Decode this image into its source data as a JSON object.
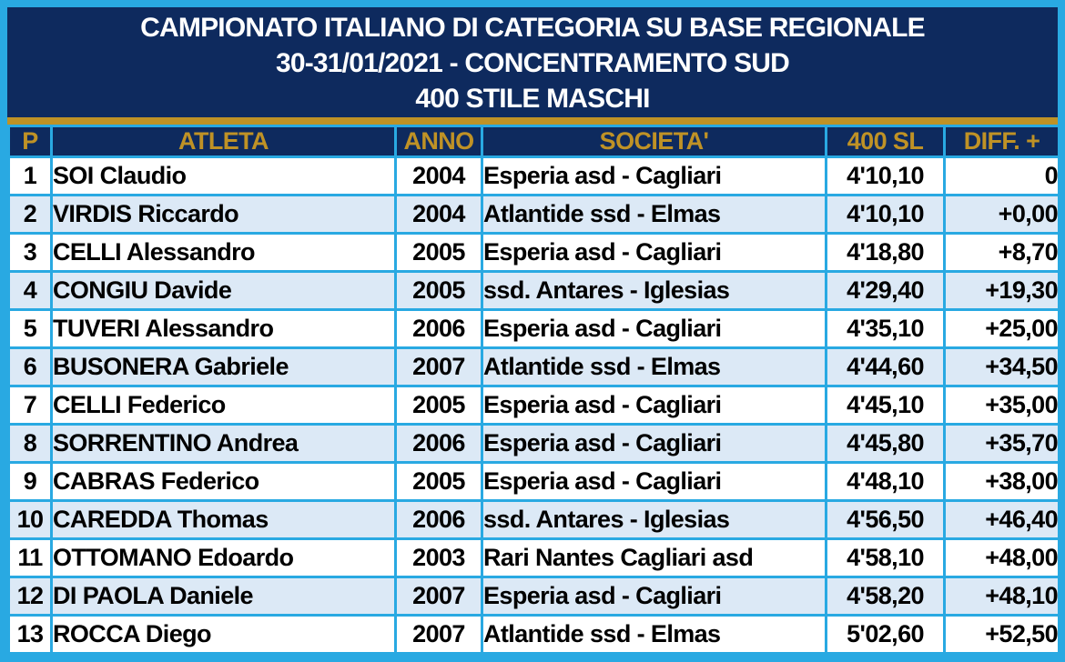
{
  "colors": {
    "frame": "#29A9E2",
    "navy": "#0E2A5E",
    "gold": "#BF9226",
    "row_white": "#FFFFFF",
    "row_alt": "#DCE9F6",
    "body_text": "#000000",
    "title_text": "#FFFFFF"
  },
  "title": {
    "line1": "CAMPIONATO ITALIANO DI CATEGORIA SU BASE REGIONALE",
    "line2": "30-31/01/2021 - CONCENTRAMENTO SUD",
    "line3": "400 STILE MASCHI"
  },
  "table": {
    "columns": [
      "P",
      "ATLETA",
      "ANNO",
      "SOCIETA'",
      "400 SL",
      "DIFF. +"
    ],
    "rows": [
      {
        "p": "1",
        "atleta": "SOI Claudio",
        "anno": "2004",
        "societa": "Esperia asd - Cagliari",
        "tempo": "4'10,10",
        "diff": "0"
      },
      {
        "p": "2",
        "atleta": "VIRDIS Riccardo",
        "anno": "2004",
        "societa": "Atlantide ssd - Elmas",
        "tempo": "4'10,10",
        "diff": "+0,00"
      },
      {
        "p": "3",
        "atleta": "CELLI Alessandro",
        "anno": "2005",
        "societa": "Esperia asd - Cagliari",
        "tempo": "4'18,80",
        "diff": "+8,70"
      },
      {
        "p": "4",
        "atleta": "CONGIU Davide",
        "anno": "2005",
        "societa": "ssd. Antares - Iglesias",
        "tempo": "4'29,40",
        "diff": "+19,30"
      },
      {
        "p": "5",
        "atleta": "TUVERI Alessandro",
        "anno": "2006",
        "societa": "Esperia asd - Cagliari",
        "tempo": "4'35,10",
        "diff": "+25,00"
      },
      {
        "p": "6",
        "atleta": "BUSONERA Gabriele",
        "anno": "2007",
        "societa": "Atlantide ssd - Elmas",
        "tempo": "4'44,60",
        "diff": "+34,50"
      },
      {
        "p": "7",
        "atleta": "CELLI Federico",
        "anno": "2005",
        "societa": "Esperia asd - Cagliari",
        "tempo": "4'45,10",
        "diff": "+35,00"
      },
      {
        "p": "8",
        "atleta": "SORRENTINO Andrea",
        "anno": "2006",
        "societa": "Esperia asd - Cagliari",
        "tempo": "4'45,80",
        "diff": "+35,70"
      },
      {
        "p": "9",
        "atleta": "CABRAS Federico",
        "anno": "2005",
        "societa": "Esperia asd - Cagliari",
        "tempo": "4'48,10",
        "diff": "+38,00"
      },
      {
        "p": "10",
        "atleta": "CAREDDA Thomas",
        "anno": "2006",
        "societa": "ssd. Antares - Iglesias",
        "tempo": "4'56,50",
        "diff": "+46,40"
      },
      {
        "p": "11",
        "atleta": "OTTOMANO Edoardo",
        "anno": "2003",
        "societa": "Rari Nantes Cagliari asd",
        "tempo": "4'58,10",
        "diff": "+48,00"
      },
      {
        "p": "12",
        "atleta": "DI PAOLA Daniele",
        "anno": "2007",
        "societa": "Esperia asd - Cagliari",
        "tempo": "4'58,20",
        "diff": "+48,10"
      },
      {
        "p": "13",
        "atleta": "ROCCA Diego",
        "anno": "2007",
        "societa": "Atlantide ssd - Elmas",
        "tempo": "5'02,60",
        "diff": "+52,50"
      }
    ]
  }
}
